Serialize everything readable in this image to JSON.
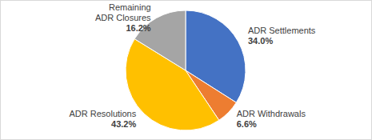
{
  "chart_data": {
    "type": "pie",
    "categories": [
      "ADR Settlements",
      "ADR Withdrawals",
      "ADR Resolutions",
      "Remaining ADR Closures"
    ],
    "values": [
      34.0,
      6.6,
      43.2,
      16.2
    ],
    "value_labels": [
      "34.0%",
      "6.6%",
      "43.2%",
      "16.2%"
    ],
    "colors": [
      "#4472c4",
      "#ed7d31",
      "#ffc000",
      "#a5a5a5"
    ],
    "data_labels": true
  }
}
